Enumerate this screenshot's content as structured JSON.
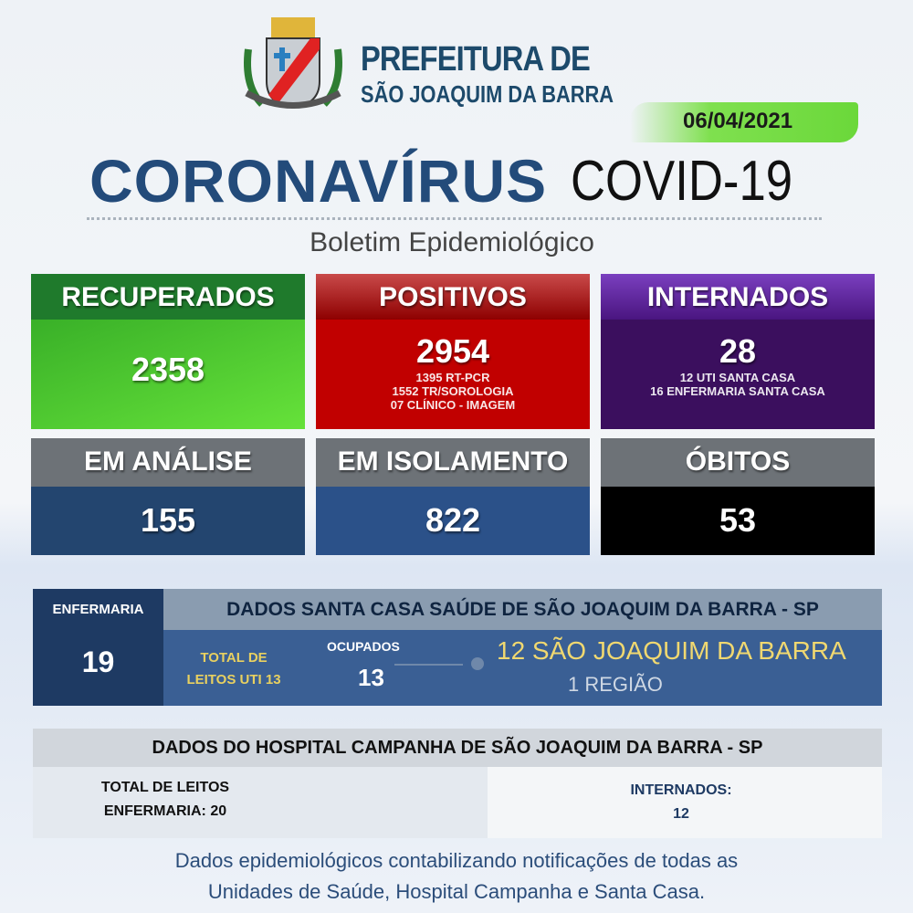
{
  "header": {
    "title_line1": "PREFEITURA DE",
    "title_line2": "SÃO JOAQUIM DA BARRA",
    "date": "06/04/2021",
    "headline_bold": "CORONAVÍRUS",
    "headline_light": "COVID-19",
    "subtitle": "Boletim Epidemiológico"
  },
  "colors": {
    "green": "#3fbf2a",
    "red": "#c10000",
    "purple": "#3b0f5e",
    "navy": "#234b7a",
    "gray": "#6d7277"
  },
  "cards": [
    {
      "label": "RECUPERADOS",
      "value": "2358",
      "details": []
    },
    {
      "label": "POSITIVOS",
      "value": "2954",
      "details": [
        "1395 RT-PCR",
        "1552 TR/SOROLOGIA",
        "07 CLÍNICO - IMAGEM"
      ]
    },
    {
      "label": "INTERNADOS",
      "value": "28",
      "details": [
        "12  UTI SANTA CASA",
        "16 ENFERMARIA SANTA CASA"
      ]
    },
    {
      "label": "EM ANÁLISE",
      "value": "155"
    },
    {
      "label": "EM ISOLAMENTO",
      "value": "822"
    },
    {
      "label": "ÓBITOS",
      "value": "53"
    }
  ],
  "santa_casa": {
    "enfermaria_label": "ENFERMARIA",
    "enfermaria_value": "19",
    "title": "DADOS SANTA CASA SAÚDE DE SÃO JOAQUIM DA BARRA - SP",
    "total_line1": "TOTAL DE",
    "total_line2": "LEITOS UTI 13",
    "ocupados_label": "OCUPADOS",
    "ocupados_value": "13",
    "local": "12 SÃO JOAQUIM DA BARRA",
    "regiao": "1 REGIÃO"
  },
  "hospital": {
    "title": "DADOS DO HOSPITAL CAMPANHA DE SÃO JOAQUIM DA BARRA - SP",
    "total_line1": "TOTAL DE LEITOS",
    "total_line2": "ENFERMARIA: 20",
    "internados_label": "INTERNADOS:",
    "internados_value": "12"
  },
  "footer": {
    "line1": "Dados epidemiológicos contabilizando notificações de todas as",
    "line2": "Unidades de Saúde, Hospital Campanha e Santa Casa."
  }
}
